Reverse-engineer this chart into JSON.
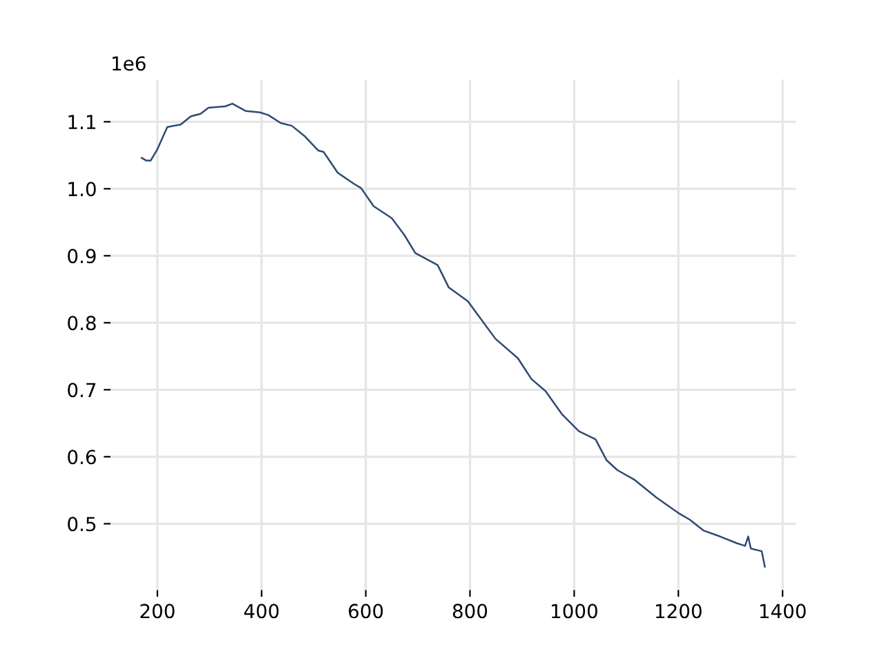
{
  "chart_data": {
    "type": "line",
    "annotations": [
      "1e6"
    ],
    "x": [
      170,
      179,
      187,
      200,
      219,
      245,
      264,
      283,
      298,
      330,
      344,
      370,
      397,
      413,
      437,
      458,
      482,
      509,
      519,
      546,
      578,
      591,
      615,
      650,
      674,
      695,
      738,
      759,
      796,
      812,
      849,
      892,
      918,
      945,
      977,
      1009,
      1041,
      1062,
      1083,
      1115,
      1158,
      1200,
      1222,
      1248,
      1280,
      1312,
      1328,
      1334,
      1339,
      1360,
      1366
    ],
    "series": [
      {
        "color": "#2e4a72",
        "values": [
          1.046,
          1.042,
          1.042,
          1.059,
          1.092,
          1.096,
          1.108,
          1.112,
          1.121,
          1.123,
          1.127,
          1.116,
          1.114,
          1.11,
          1.098,
          1.094,
          1.079,
          1.057,
          1.055,
          1.024,
          1.007,
          1.001,
          0.974,
          0.956,
          0.931,
          0.904,
          0.886,
          0.853,
          0.832,
          0.815,
          0.776,
          0.747,
          0.716,
          0.698,
          0.663,
          0.638,
          0.626,
          0.595,
          0.58,
          0.566,
          0.539,
          0.516,
          0.506,
          0.49,
          0.481,
          0.471,
          0.467,
          0.481,
          0.463,
          0.459,
          0.436
        ]
      }
    ],
    "xlim": [
      110,
      1425
    ],
    "xticks": [
      200,
      400,
      600,
      800,
      1000,
      1200,
      1400
    ],
    "ylim": [
      0.401,
      1.163
    ],
    "yticks": [
      0.5,
      0.6,
      0.7,
      0.8,
      0.9,
      {
        "value": 1.0,
        "label": "1.0"
      },
      1.1
    ],
    "grid": true,
    "marker": "none",
    "line_style": "solid",
    "legend": false
  }
}
